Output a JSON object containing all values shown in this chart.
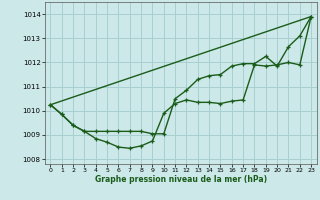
{
  "title": "Graphe pression niveau de la mer (hPa)",
  "bg_color": "#cce8e8",
  "grid_color": "#a8d0d0",
  "line_color": "#1a5c1a",
  "xlim": [
    -0.5,
    23.5
  ],
  "ylim": [
    1007.8,
    1014.5
  ],
  "yticks": [
    1008,
    1009,
    1010,
    1011,
    1012,
    1013,
    1014
  ],
  "xticks": [
    0,
    1,
    2,
    3,
    4,
    5,
    6,
    7,
    8,
    9,
    10,
    11,
    12,
    13,
    14,
    15,
    16,
    17,
    18,
    19,
    20,
    21,
    22,
    23
  ],
  "series_lower_x": [
    0,
    1,
    2,
    3,
    4,
    5,
    6,
    7,
    8,
    9,
    10,
    11,
    12,
    13,
    14,
    15,
    16,
    17,
    18,
    19,
    20,
    21,
    22,
    23
  ],
  "series_lower_y": [
    1010.25,
    1009.85,
    1009.4,
    1009.15,
    1008.85,
    1008.7,
    1008.5,
    1008.45,
    1008.55,
    1008.75,
    1009.9,
    1010.3,
    1010.45,
    1010.35,
    1010.35,
    1010.3,
    1010.4,
    1010.45,
    1011.9,
    1011.85,
    1011.9,
    1012.0,
    1011.9,
    1013.9
  ],
  "series_upper_x": [
    0,
    1,
    2,
    3,
    4,
    5,
    6,
    7,
    8,
    9,
    10,
    11,
    12,
    13,
    14,
    15,
    16,
    17,
    18,
    19,
    20,
    21,
    22,
    23
  ],
  "series_upper_y": [
    1010.25,
    1009.85,
    1009.4,
    1009.15,
    1009.15,
    1009.15,
    1009.15,
    1009.15,
    1009.15,
    1009.05,
    1009.05,
    1010.5,
    1010.85,
    1011.3,
    1011.45,
    1011.5,
    1011.85,
    1011.95,
    1011.95,
    1012.25,
    1011.85,
    1012.65,
    1013.1,
    1013.9
  ],
  "series_line_x": [
    0,
    23
  ],
  "series_line_y": [
    1010.25,
    1013.9
  ]
}
